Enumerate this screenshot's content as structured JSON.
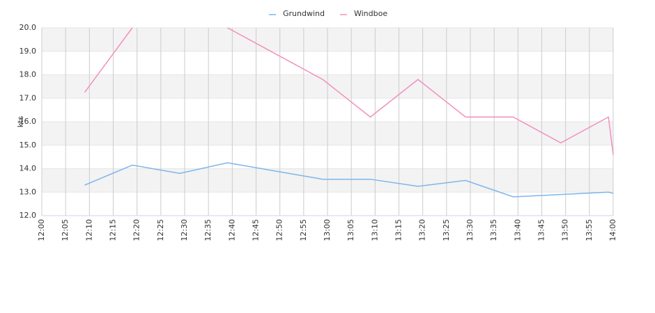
{
  "chart_data": {
    "type": "line",
    "y_label": "kts",
    "xlim": [
      "12:00",
      "14:00"
    ],
    "xticks": [
      "12:00",
      "12:05",
      "12:10",
      "12:15",
      "12:20",
      "12:25",
      "12:30",
      "12:35",
      "12:40",
      "12:45",
      "12:50",
      "12:55",
      "13:00",
      "13:05",
      "13:10",
      "13:15",
      "13:20",
      "13:25",
      "13:30",
      "13:35",
      "13:40",
      "13:45",
      "13:50",
      "13:55",
      "14:00"
    ],
    "ylim": [
      12,
      20
    ],
    "yticks": [
      {
        "value": 12,
        "label": "12.0"
      },
      {
        "value": 13,
        "label": "13.0"
      },
      {
        "value": 14,
        "label": "14.0"
      },
      {
        "value": 15,
        "label": "15.0"
      },
      {
        "value": 16,
        "label": "16.0"
      },
      {
        "value": 17,
        "label": "17.0"
      },
      {
        "value": 18,
        "label": "18.0"
      },
      {
        "value": 19,
        "label": "19.0"
      },
      {
        "value": 20,
        "label": "20.0"
      }
    ],
    "grid": true,
    "legend": "top",
    "x": [
      "12:09",
      "12:19",
      "12:29",
      "12:39",
      "12:59",
      "13:09",
      "13:19",
      "13:29",
      "13:39",
      "13:49",
      "13:59",
      "14:00"
    ],
    "series": [
      {
        "name": "Grundwind",
        "color": "#7cb5ec",
        "values": [
          13.3,
          14.15,
          13.8,
          14.25,
          13.55,
          13.55,
          13.25,
          13.5,
          12.8,
          12.9,
          13.0,
          12.95
        ]
      },
      {
        "name": "Windboe",
        "color": "#f28fbf",
        "values": [
          17.25,
          20.0,
          null,
          20.0,
          17.8,
          16.2,
          17.8,
          16.2,
          16.2,
          15.1,
          16.2,
          14.6
        ]
      }
    ]
  }
}
